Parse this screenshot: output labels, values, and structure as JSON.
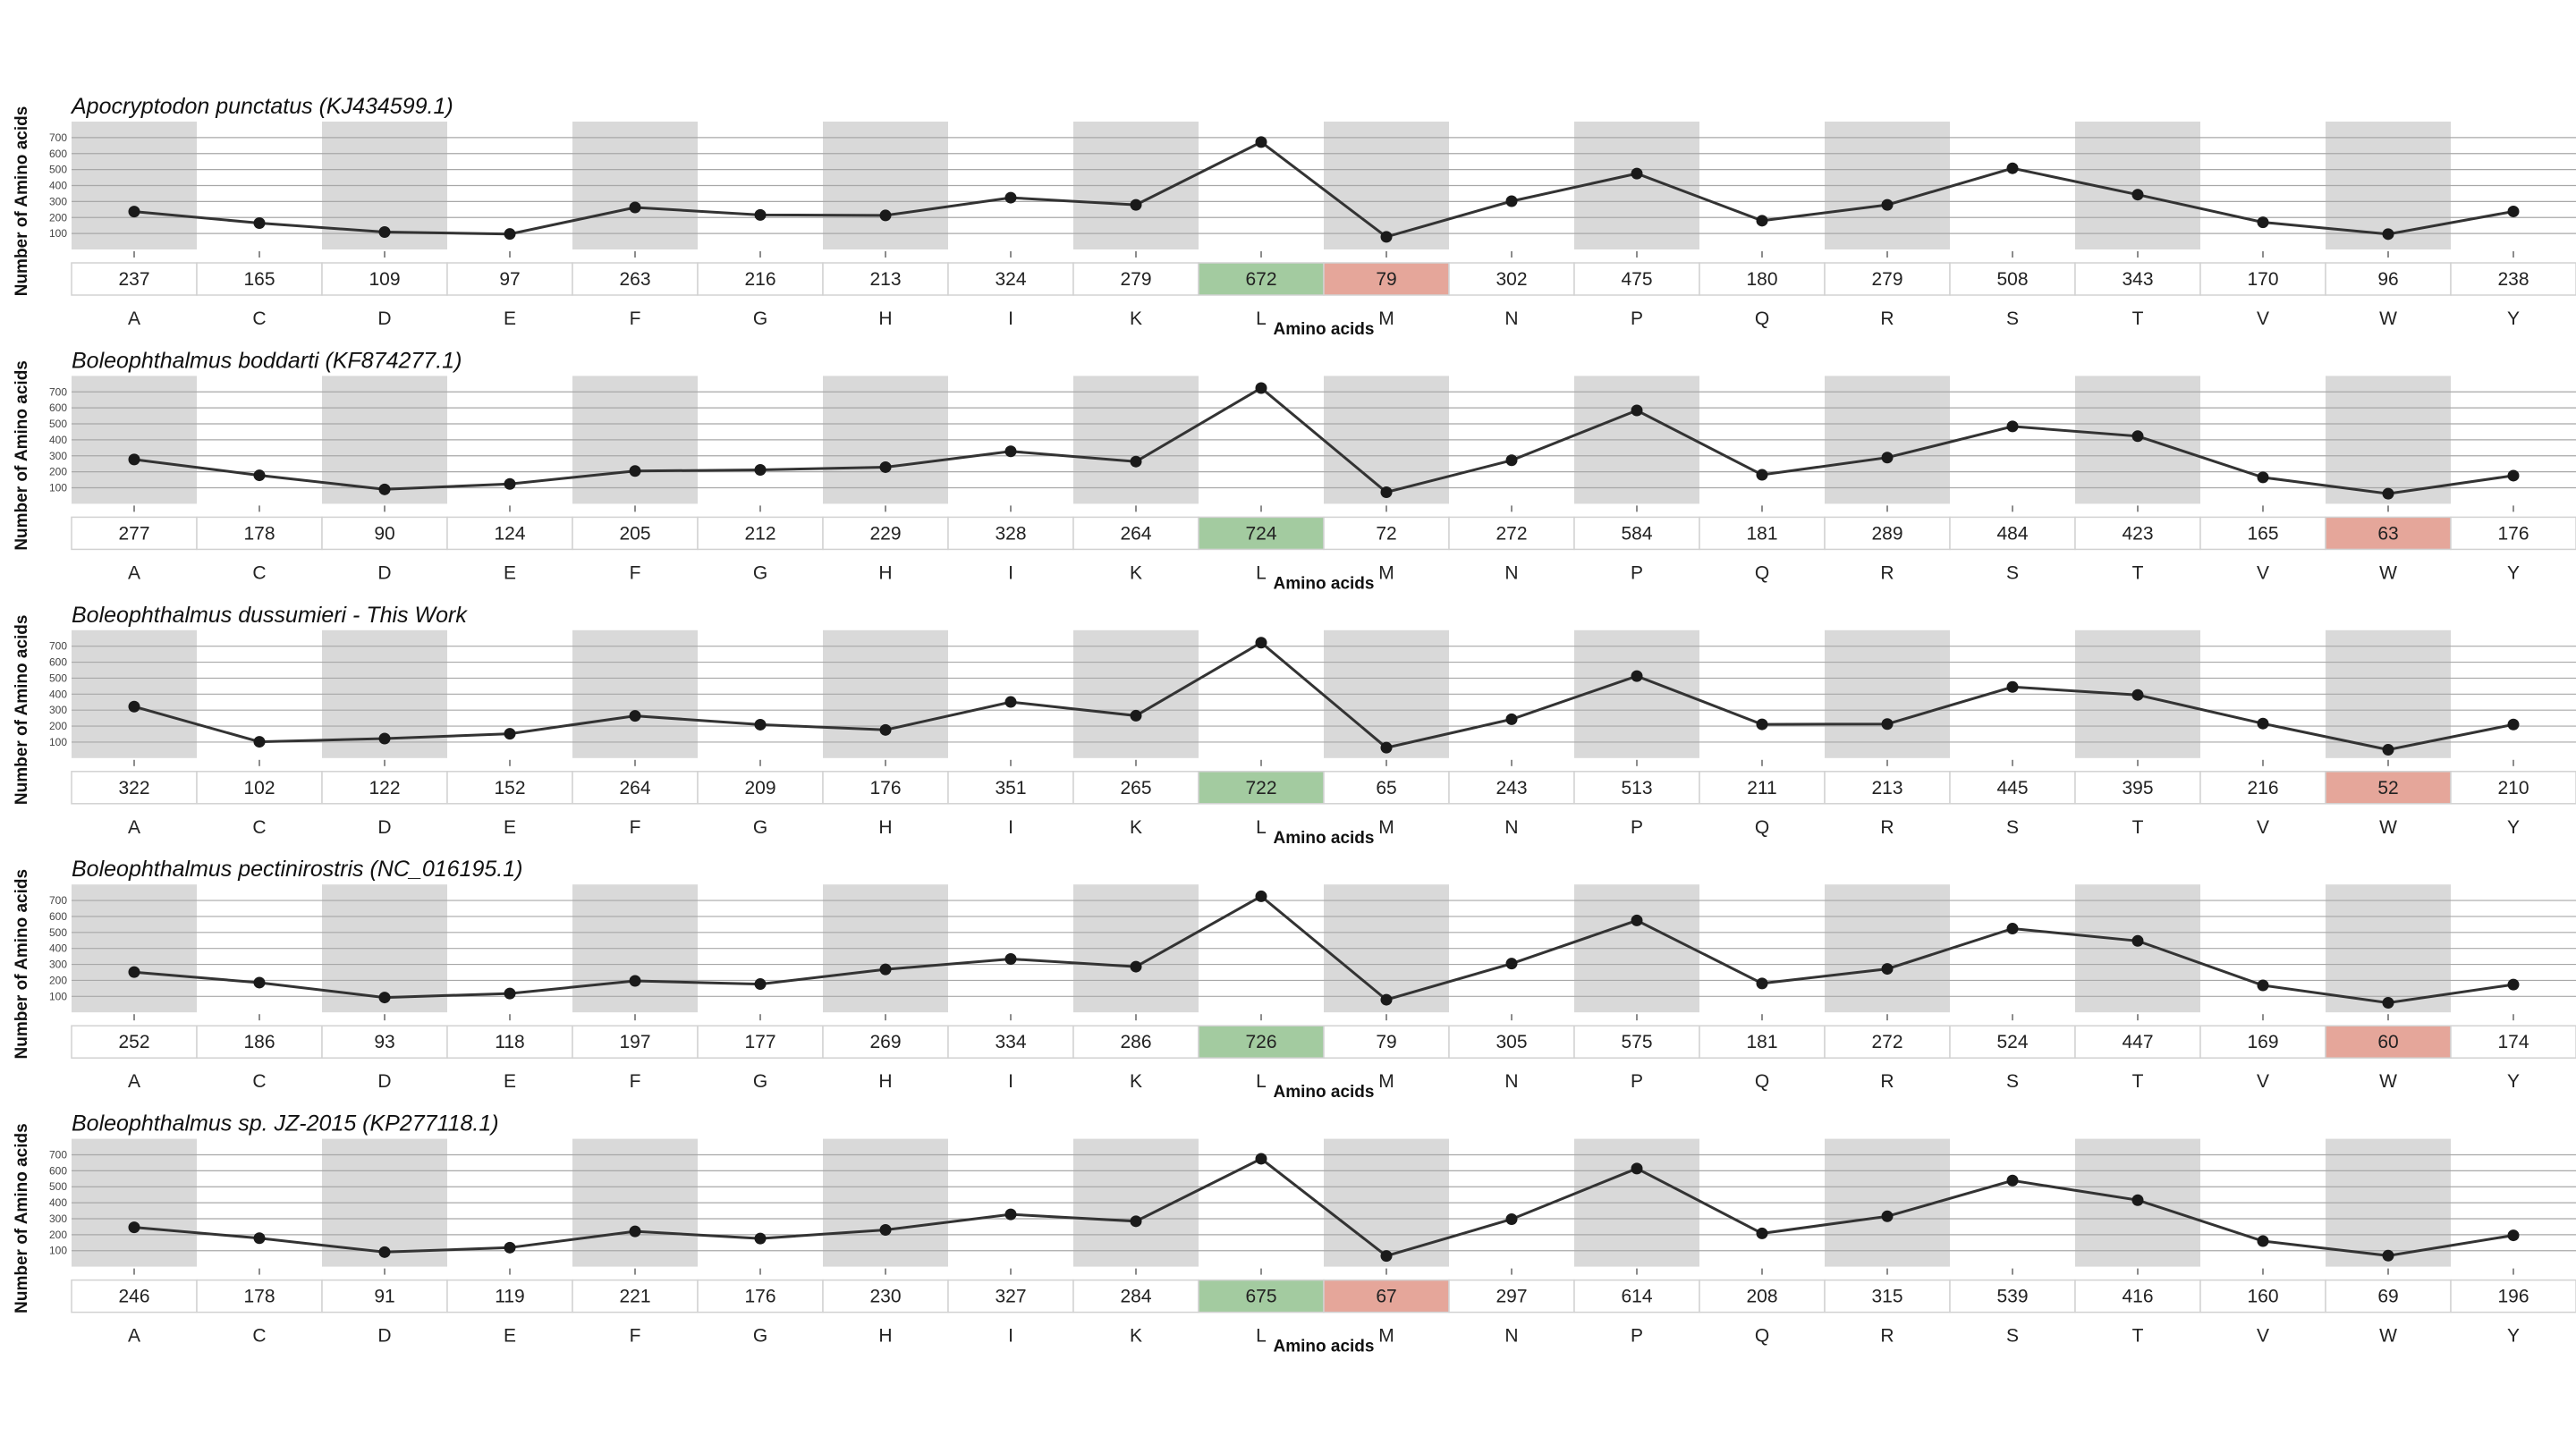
{
  "chart_data": [
    {
      "type": "line",
      "title": "Apocryptodon punctatus (KJ434599.1)",
      "xlabel": "Amino acids",
      "ylabel": "Number of Amino acids",
      "categories": [
        "A",
        "C",
        "D",
        "E",
        "F",
        "G",
        "H",
        "I",
        "K",
        "L",
        "M",
        "N",
        "P",
        "Q",
        "R",
        "S",
        "T",
        "V",
        "W",
        "Y"
      ],
      "values": [
        237,
        165,
        109,
        97,
        263,
        216,
        213,
        324,
        279,
        672,
        79,
        302,
        475,
        180,
        279,
        508,
        343,
        170,
        96,
        238
      ],
      "yticks": [
        100,
        200,
        300,
        400,
        500,
        600,
        700
      ],
      "ylim": [
        0,
        800
      ],
      "max_category": "L",
      "min_category": "M",
      "grid": true
    },
    {
      "type": "line",
      "title": "Boleophthalmus boddarti (KF874277.1)",
      "xlabel": "Amino acids",
      "ylabel": "Number of Amino acids",
      "categories": [
        "A",
        "C",
        "D",
        "E",
        "F",
        "G",
        "H",
        "I",
        "K",
        "L",
        "M",
        "N",
        "P",
        "Q",
        "R",
        "S",
        "T",
        "V",
        "W",
        "Y"
      ],
      "values": [
        277,
        178,
        90,
        124,
        205,
        212,
        229,
        328,
        264,
        724,
        72,
        272,
        584,
        181,
        289,
        484,
        423,
        165,
        63,
        176
      ],
      "yticks": [
        100,
        200,
        300,
        400,
        500,
        600,
        700
      ],
      "ylim": [
        0,
        800
      ],
      "max_category": "L",
      "min_category": "W",
      "grid": true
    },
    {
      "type": "line",
      "title": "Boleophthalmus dussumieri - This Work",
      "xlabel": "Amino acids",
      "ylabel": "Number of Amino acids",
      "categories": [
        "A",
        "C",
        "D",
        "E",
        "F",
        "G",
        "H",
        "I",
        "K",
        "L",
        "M",
        "N",
        "P",
        "Q",
        "R",
        "S",
        "T",
        "V",
        "W",
        "Y"
      ],
      "values": [
        322,
        102,
        122,
        152,
        264,
        209,
        176,
        351,
        265,
        722,
        65,
        243,
        513,
        211,
        213,
        445,
        395,
        216,
        52,
        210
      ],
      "yticks": [
        100,
        200,
        300,
        400,
        500,
        600,
        700
      ],
      "ylim": [
        0,
        800
      ],
      "max_category": "L",
      "min_category": "W",
      "grid": true
    },
    {
      "type": "line",
      "title": "Boleophthalmus pectinirostris (NC_016195.1)",
      "xlabel": "Amino acids",
      "ylabel": "Number of Amino acids",
      "categories": [
        "A",
        "C",
        "D",
        "E",
        "F",
        "G",
        "H",
        "I",
        "K",
        "L",
        "M",
        "N",
        "P",
        "Q",
        "R",
        "S",
        "T",
        "V",
        "W",
        "Y"
      ],
      "values": [
        252,
        186,
        93,
        118,
        197,
        177,
        269,
        334,
        286,
        726,
        79,
        305,
        575,
        181,
        272,
        524,
        447,
        169,
        60,
        174
      ],
      "yticks": [
        100,
        200,
        300,
        400,
        500,
        600,
        700
      ],
      "ylim": [
        0,
        800
      ],
      "max_category": "L",
      "min_category": "W",
      "grid": true
    },
    {
      "type": "line",
      "title": "Boleophthalmus sp. JZ-2015 (KP277118.1)",
      "xlabel": "Amino acids",
      "ylabel": "Number of Amino acids",
      "categories": [
        "A",
        "C",
        "D",
        "E",
        "F",
        "G",
        "H",
        "I",
        "K",
        "L",
        "M",
        "N",
        "P",
        "Q",
        "R",
        "S",
        "T",
        "V",
        "W",
        "Y"
      ],
      "values": [
        246,
        178,
        91,
        119,
        221,
        176,
        230,
        327,
        284,
        675,
        67,
        297,
        614,
        208,
        315,
        539,
        416,
        160,
        69,
        196
      ],
      "yticks": [
        100,
        200,
        300,
        400,
        500,
        600,
        700
      ],
      "ylim": [
        0,
        800
      ],
      "max_category": "L",
      "min_category": "M",
      "grid": true
    }
  ],
  "colors": {
    "max_cell": "#a3cba0",
    "min_cell": "#e5a69a",
    "band": "#d9d9d9",
    "line": "#333333",
    "grid": "#a8a8a8"
  }
}
